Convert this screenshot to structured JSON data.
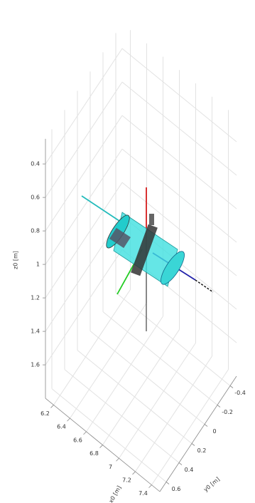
{
  "chart_data": {
    "type": "plot3d",
    "xlabel": "x0 [m]",
    "ylabel": "y0 [m]",
    "zlabel": "z0 [m]",
    "xlim": [
      6.1,
      7.5
    ],
    "xticks": [
      6.2,
      6.4,
      6.6,
      6.8,
      7,
      7.2,
      7.4
    ],
    "ylim": [
      -0.5,
      0.7
    ],
    "yticks": [
      -0.4,
      -0.2,
      0,
      0.2,
      0.4,
      0.6
    ],
    "zlim": [
      0.25,
      1.8
    ],
    "zticks": [
      0.4,
      0.6,
      0.8,
      1,
      1.2,
      1.4,
      1.6
    ],
    "z_reversed": true,
    "grid": true
  }
}
